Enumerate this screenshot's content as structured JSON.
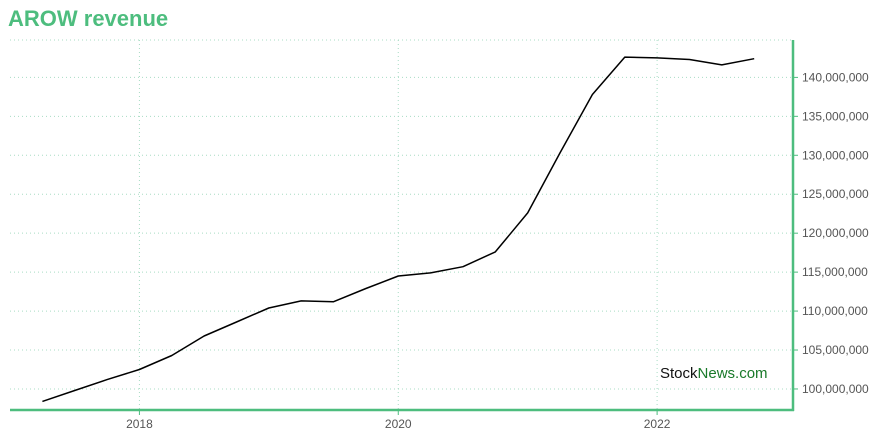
{
  "title": "AROW revenue",
  "watermark": {
    "part1": "Stock",
    "part2": "News",
    "part3": ".com"
  },
  "colors": {
    "accent": "#4dbd7e",
    "line": "#000000",
    "grid": "#a8dcc4"
  },
  "chart_data": {
    "type": "line",
    "title": "AROW revenue",
    "xlabel": "",
    "ylabel": "",
    "x_ticks": [
      {
        "value": 2018,
        "label": "2018"
      },
      {
        "value": 2020,
        "label": "2020"
      },
      {
        "value": 2022,
        "label": "2022"
      }
    ],
    "y_ticks": [
      {
        "value": 100000000,
        "label": "100,000,000"
      },
      {
        "value": 105000000,
        "label": "105,000,000"
      },
      {
        "value": 110000000,
        "label": "110,000,000"
      },
      {
        "value": 115000000,
        "label": "115,000,000"
      },
      {
        "value": 120000000,
        "label": "120,000,000"
      },
      {
        "value": 125000000,
        "label": "125,000,000"
      },
      {
        "value": 130000000,
        "label": "130,000,000"
      },
      {
        "value": 135000000,
        "label": "135,000,000"
      },
      {
        "value": 140000000,
        "label": "140,000,000"
      }
    ],
    "xlim": [
      2017.0,
      2023.05
    ],
    "ylim": [
      97300000,
      144800000
    ],
    "grid": true,
    "legend": "none",
    "series": [
      {
        "x": [
          2017.25,
          2017.5,
          2017.75,
          2018.0,
          2018.25,
          2018.5,
          2018.75,
          2019.0,
          2019.25,
          2019.5,
          2019.75,
          2020.0,
          2020.25,
          2020.5,
          2020.75,
          2021.0,
          2021.25,
          2021.5,
          2021.75,
          2022.0,
          2022.25,
          2022.5,
          2022.75
        ],
        "y": [
          98400000,
          99800000,
          101200000,
          102500000,
          104300000,
          106800000,
          108600000,
          110400000,
          111300000,
          111200000,
          112900000,
          114500000,
          114900000,
          115700000,
          117600000,
          122600000,
          130300000,
          137800000,
          142600000,
          142500000,
          142300000,
          141600000,
          142400000
        ]
      }
    ]
  }
}
